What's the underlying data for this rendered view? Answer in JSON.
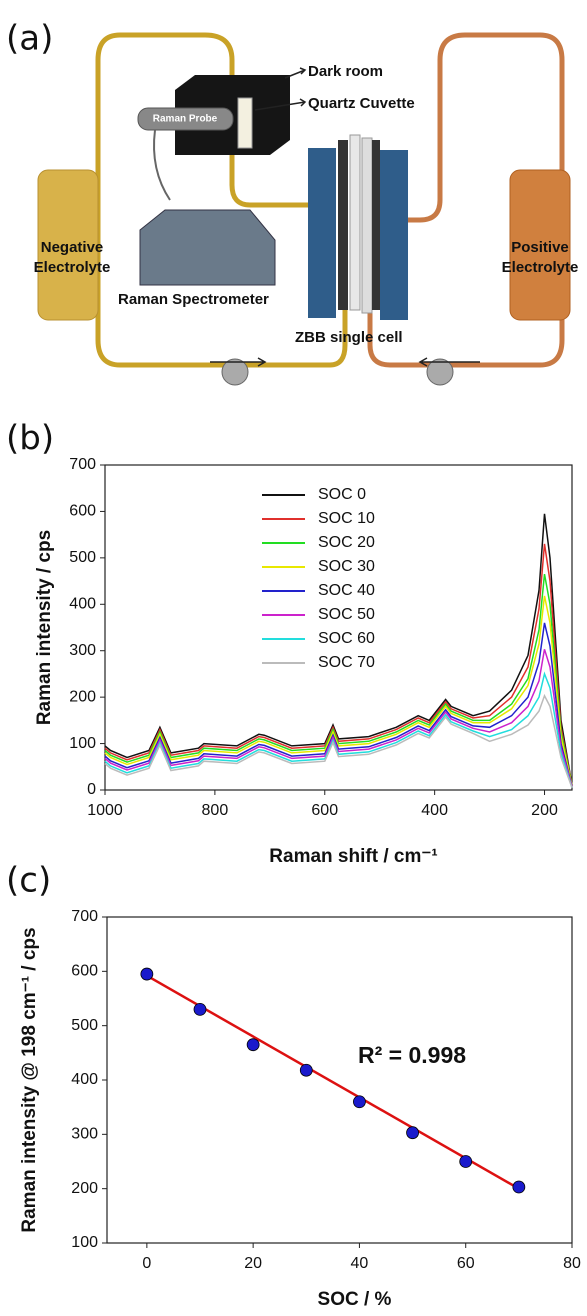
{
  "diagram": {
    "label": "(a)",
    "dark_room": "Dark room",
    "quartz_cuvette": "Quartz Cuvette",
    "raman_probe": "Raman Probe",
    "negative_electrolyte": [
      "Negative",
      "Electrolyte"
    ],
    "positive_electrolyte": [
      "Positive",
      "Electrolyte"
    ],
    "raman_spectrometer": "Raman Spectrometer",
    "single_cell": "ZBB single cell"
  },
  "chart_data": [
    {
      "type": "line",
      "label": "(b)",
      "x_label": "Raman shift / cm⁻¹",
      "y_label": "Raman intensity / cps",
      "x": [
        1000,
        990,
        960,
        920,
        900,
        880,
        830,
        820,
        760,
        720,
        710,
        660,
        600,
        585,
        575,
        520,
        470,
        430,
        410,
        380,
        370,
        330,
        300,
        260,
        230,
        210,
        200,
        190,
        170,
        150
      ],
      "series": [
        {
          "name": "SOC 0",
          "color": "#111111",
          "values": [
            95,
            85,
            70,
            85,
            135,
            80,
            90,
            100,
            95,
            120,
            118,
            95,
            100,
            140,
            110,
            115,
            135,
            160,
            150,
            195,
            180,
            160,
            170,
            215,
            290,
            430,
            595,
            500,
            150,
            10
          ]
        },
        {
          "name": "SOC 10",
          "color": "#e0302c",
          "values": [
            90,
            80,
            65,
            80,
            130,
            75,
            85,
            95,
            90,
            115,
            113,
            90,
            95,
            135,
            105,
            110,
            130,
            155,
            145,
            190,
            175,
            155,
            160,
            200,
            265,
            390,
            530,
            450,
            135,
            10
          ]
        },
        {
          "name": "SOC 20",
          "color": "#22dd22",
          "values": [
            85,
            75,
            60,
            75,
            125,
            70,
            80,
            90,
            85,
            110,
            108,
            85,
            90,
            130,
            100,
            105,
            125,
            150,
            140,
            185,
            170,
            150,
            150,
            185,
            240,
            345,
            465,
            400,
            125,
            10
          ]
        },
        {
          "name": "SOC 30",
          "color": "#e8e800",
          "values": [
            80,
            70,
            55,
            70,
            120,
            65,
            75,
            85,
            80,
            105,
            103,
            80,
            85,
            125,
            95,
            100,
            120,
            145,
            135,
            180,
            165,
            145,
            145,
            175,
            225,
            315,
            418,
            360,
            115,
            10
          ]
        },
        {
          "name": "SOC 40",
          "color": "#2222cc",
          "values": [
            73,
            63,
            48,
            63,
            113,
            58,
            68,
            78,
            73,
            98,
            96,
            73,
            78,
            118,
            88,
            93,
            113,
            138,
            128,
            173,
            158,
            138,
            135,
            160,
            200,
            275,
            360,
            310,
            100,
            8
          ]
        },
        {
          "name": "SOC 50",
          "color": "#cc22cc",
          "values": [
            68,
            58,
            43,
            58,
            108,
            53,
            63,
            73,
            68,
            93,
            91,
            68,
            73,
            113,
            83,
            88,
            108,
            133,
            123,
            168,
            153,
            133,
            125,
            145,
            180,
            235,
            303,
            265,
            90,
            8
          ]
        },
        {
          "name": "SOC 60",
          "color": "#22dddd",
          "values": [
            62,
            52,
            37,
            52,
            102,
            47,
            57,
            67,
            62,
            87,
            85,
            62,
            67,
            107,
            77,
            82,
            102,
            127,
            117,
            162,
            147,
            127,
            115,
            130,
            160,
            200,
            250,
            220,
            80,
            5
          ]
        },
        {
          "name": "SOC 70",
          "color": "#bbbbbb",
          "values": [
            57,
            47,
            32,
            47,
            97,
            42,
            52,
            62,
            57,
            82,
            80,
            57,
            62,
            102,
            72,
            77,
            97,
            122,
            112,
            157,
            142,
            122,
            105,
            120,
            140,
            170,
            203,
            180,
            70,
            5
          ]
        }
      ],
      "xlim": [
        1000,
        150
      ],
      "xticks": [
        1000,
        800,
        600,
        400,
        200
      ],
      "ylim": [
        0,
        700
      ],
      "yticks": [
        0,
        100,
        200,
        300,
        400,
        500,
        600,
        700
      ]
    },
    {
      "type": "scatter",
      "label": "(c)",
      "x_label": "SOC / %",
      "y_label": "Raman intensity @ 198 cm⁻¹ / cps",
      "annotation": "R² = 0.998",
      "x": [
        0,
        10,
        20,
        30,
        40,
        50,
        60,
        70
      ],
      "series": [
        {
          "color": "#1a1acc",
          "values": [
            595,
            530,
            465,
            418,
            360,
            303,
            250,
            203
          ]
        }
      ],
      "fit": {
        "color": "#dd1111",
        "x": [
          0,
          70
        ],
        "values": [
          592,
          200
        ]
      },
      "xlim": [
        -7.5,
        80
      ],
      "xticks": [
        0,
        20,
        40,
        60,
        80
      ],
      "ylim": [
        100,
        700
      ],
      "yticks": [
        100,
        200,
        300,
        400,
        500,
        600,
        700
      ]
    }
  ]
}
